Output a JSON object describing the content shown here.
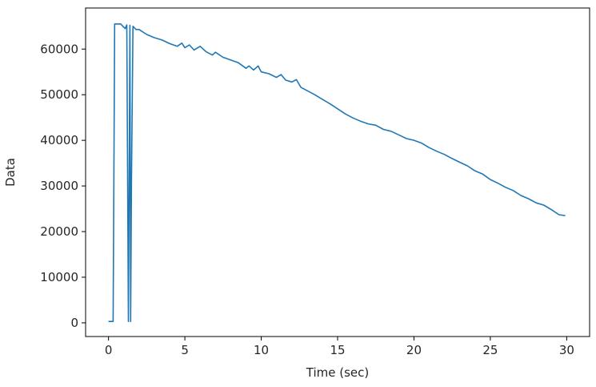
{
  "chart_data": {
    "type": "line",
    "title": "",
    "xlabel": "Time (sec)",
    "ylabel": "Data",
    "xlim": [
      -1.5,
      31.5
    ],
    "ylim": [
      -3000,
      69000
    ],
    "grid": false,
    "legend": "none",
    "xticks": [
      0,
      5,
      10,
      15,
      20,
      25,
      30
    ],
    "xtick_labels": [
      "0",
      "5",
      "10",
      "15",
      "20",
      "25",
      "30"
    ],
    "yticks": [
      0,
      10000,
      20000,
      30000,
      40000,
      50000,
      60000
    ],
    "ytick_labels": [
      "0",
      "10000",
      "20000",
      "30000",
      "40000",
      "50000",
      "60000"
    ],
    "series_color": "#1f77b4",
    "series": [
      {
        "x": [
          0.0,
          0.3,
          0.35,
          0.4,
          0.8,
          1.0,
          1.1,
          1.2,
          1.3,
          1.35,
          1.4,
          1.45,
          1.5,
          1.6,
          1.8,
          2.0,
          2.5,
          3.0,
          3.5,
          4.0,
          4.5,
          4.8,
          5.0,
          5.3,
          5.6,
          6.0,
          6.4,
          6.8,
          7.0,
          7.5,
          8.0,
          8.5,
          9.0,
          9.2,
          9.5,
          9.8,
          10.0,
          10.5,
          11.0,
          11.3,
          11.6,
          12.0,
          12.3,
          12.6,
          13.0,
          13.5,
          14.0,
          14.5,
          15.0,
          15.5,
          16.0,
          16.5,
          17.0,
          17.5,
          18.0,
          18.5,
          19.0,
          19.5,
          20.0,
          20.5,
          21.0,
          21.5,
          22.0,
          22.5,
          23.0,
          23.5,
          24.0,
          24.5,
          25.0,
          25.5,
          26.0,
          26.5,
          27.0,
          27.5,
          28.0,
          28.5,
          29.0,
          29.5,
          29.9
        ],
        "y": [
          300,
          300,
          30000,
          65500,
          65500,
          64800,
          64500,
          65300,
          300,
          30000,
          65200,
          300,
          30000,
          65000,
          64300,
          64300,
          63200,
          62500,
          62000,
          61200,
          60600,
          61300,
          60300,
          60900,
          59800,
          60600,
          59400,
          58700,
          59300,
          58200,
          57600,
          57000,
          55800,
          56300,
          55400,
          56300,
          55000,
          54600,
          53800,
          54400,
          53200,
          52800,
          53300,
          51600,
          50900,
          50000,
          49000,
          48000,
          46900,
          45800,
          44900,
          44200,
          43600,
          43300,
          42400,
          42000,
          41200,
          40400,
          40000,
          39400,
          38400,
          37600,
          36900,
          36000,
          35200,
          34400,
          33300,
          32600,
          31400,
          30600,
          29700,
          29000,
          27900,
          27200,
          26300,
          25800,
          24800,
          23700,
          23500
        ]
      }
    ]
  }
}
